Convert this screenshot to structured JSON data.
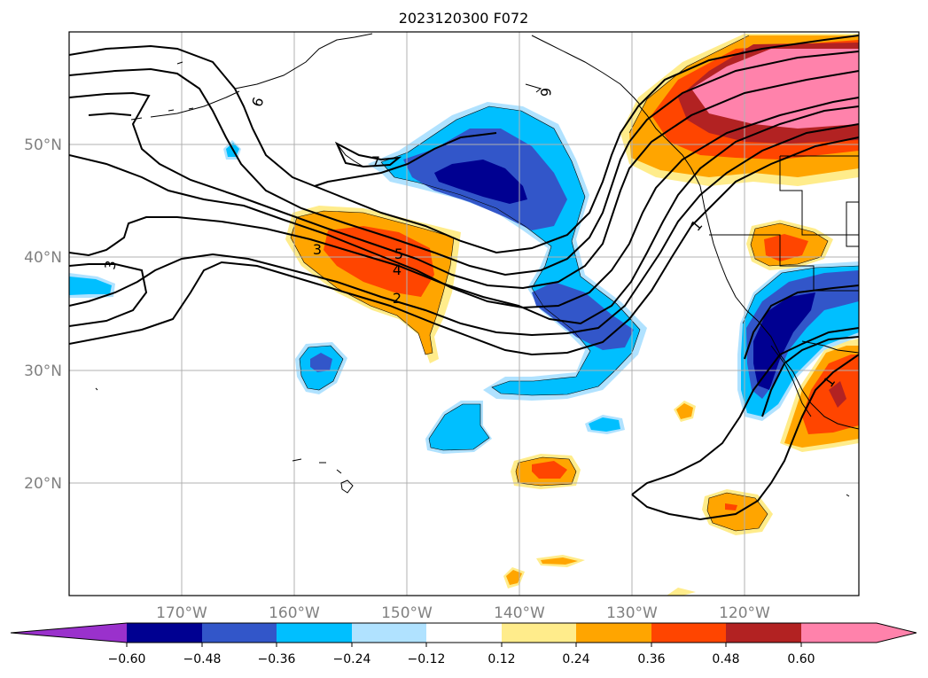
{
  "title": "2023120300 F072",
  "lat_labels": [
    "50°N",
    "40°N",
    "30°N",
    "20°N"
  ],
  "lon_labels": [
    "170°W",
    "160°W",
    "150°W",
    "140°W",
    "130°W",
    "120°W"
  ],
  "colorbar": {
    "colors": [
      "#9a31cc",
      "#000091",
      "#3256c9",
      "#00bfff",
      "#b0e2ff",
      "#ffffff",
      "#ffec8b",
      "#ffa500",
      "#ff4500",
      "#b22222",
      "#ff82ab",
      "#ff82ab"
    ],
    "tick_labels": [
      "−0.60",
      "−0.48",
      "−0.36",
      "−0.24",
      "−0.12",
      "0.12",
      "0.24",
      "0.36",
      "0.48",
      "0.60"
    ]
  },
  "contour_labels": [
    "6",
    "6",
    "7",
    "3",
    "5",
    "4",
    "2",
    "3",
    "1",
    "1"
  ]
}
